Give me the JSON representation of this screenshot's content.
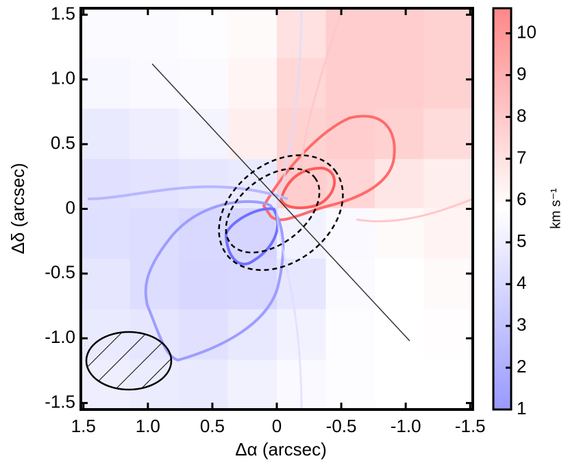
{
  "chart_data": {
    "type": "heatmap",
    "xlabel": "Δα  (arcsec)",
    "ylabel": "Δδ (arcsec)",
    "colorbar_label": "km s⁻¹",
    "xlim": [
      1.52,
      -1.52
    ],
    "ylim": [
      -1.55,
      1.55
    ],
    "xticks": [
      1.5,
      {
        "value": 1,
        "label": "1.0"
      },
      0.5,
      0,
      -0.5,
      {
        "value": -1,
        "label": "-1.0"
      },
      -1.5
    ],
    "yticks": [
      -1.5,
      {
        "value": -1,
        "label": "-1.0"
      },
      -0.5,
      0,
      0.5,
      {
        "value": 1,
        "label": "1.0"
      },
      1.5
    ],
    "x": [
      1.33,
      0.95,
      0.57,
      0.19,
      -0.19,
      -0.57,
      -0.95,
      -1.33
    ],
    "y": [
      1.36,
      0.97,
      0.58,
      0.19,
      -0.19,
      -0.58,
      -0.97,
      -1.36
    ],
    "z": [
      [
        5.6,
        5.6,
        5.7,
        6.0,
        7.0,
        7.8,
        7.8,
        7.6
      ],
      [
        5.4,
        5.5,
        5.6,
        6.2,
        7.4,
        7.8,
        7.8,
        7.6
      ],
      [
        4.8,
        5.0,
        5.3,
        6.5,
        7.6,
        7.8,
        7.6,
        7.2
      ],
      [
        4.4,
        4.5,
        4.6,
        4.8,
        7.8,
        7.5,
        6.8,
        6.5
      ],
      [
        4.3,
        4.2,
        4.0,
        3.8,
        5.2,
        5.5,
        6.0,
        6.3
      ],
      [
        4.6,
        4.2,
        3.9,
        4.0,
        4.6,
        5.6,
        5.8,
        6.0
      ],
      [
        4.8,
        4.6,
        4.4,
        4.7,
        5.2,
        5.7,
        5.8,
        5.9
      ],
      [
        5.0,
        4.9,
        4.8,
        5.2,
        5.5,
        5.7,
        5.8,
        5.8
      ]
    ],
    "clim": [
      1,
      10.6
    ],
    "cticks": [
      1,
      2,
      3,
      4,
      5,
      6,
      7,
      8,
      9,
      10
    ],
    "colormap": [
      "#9999ff",
      "#ffffff",
      "#ff8888"
    ]
  }
}
